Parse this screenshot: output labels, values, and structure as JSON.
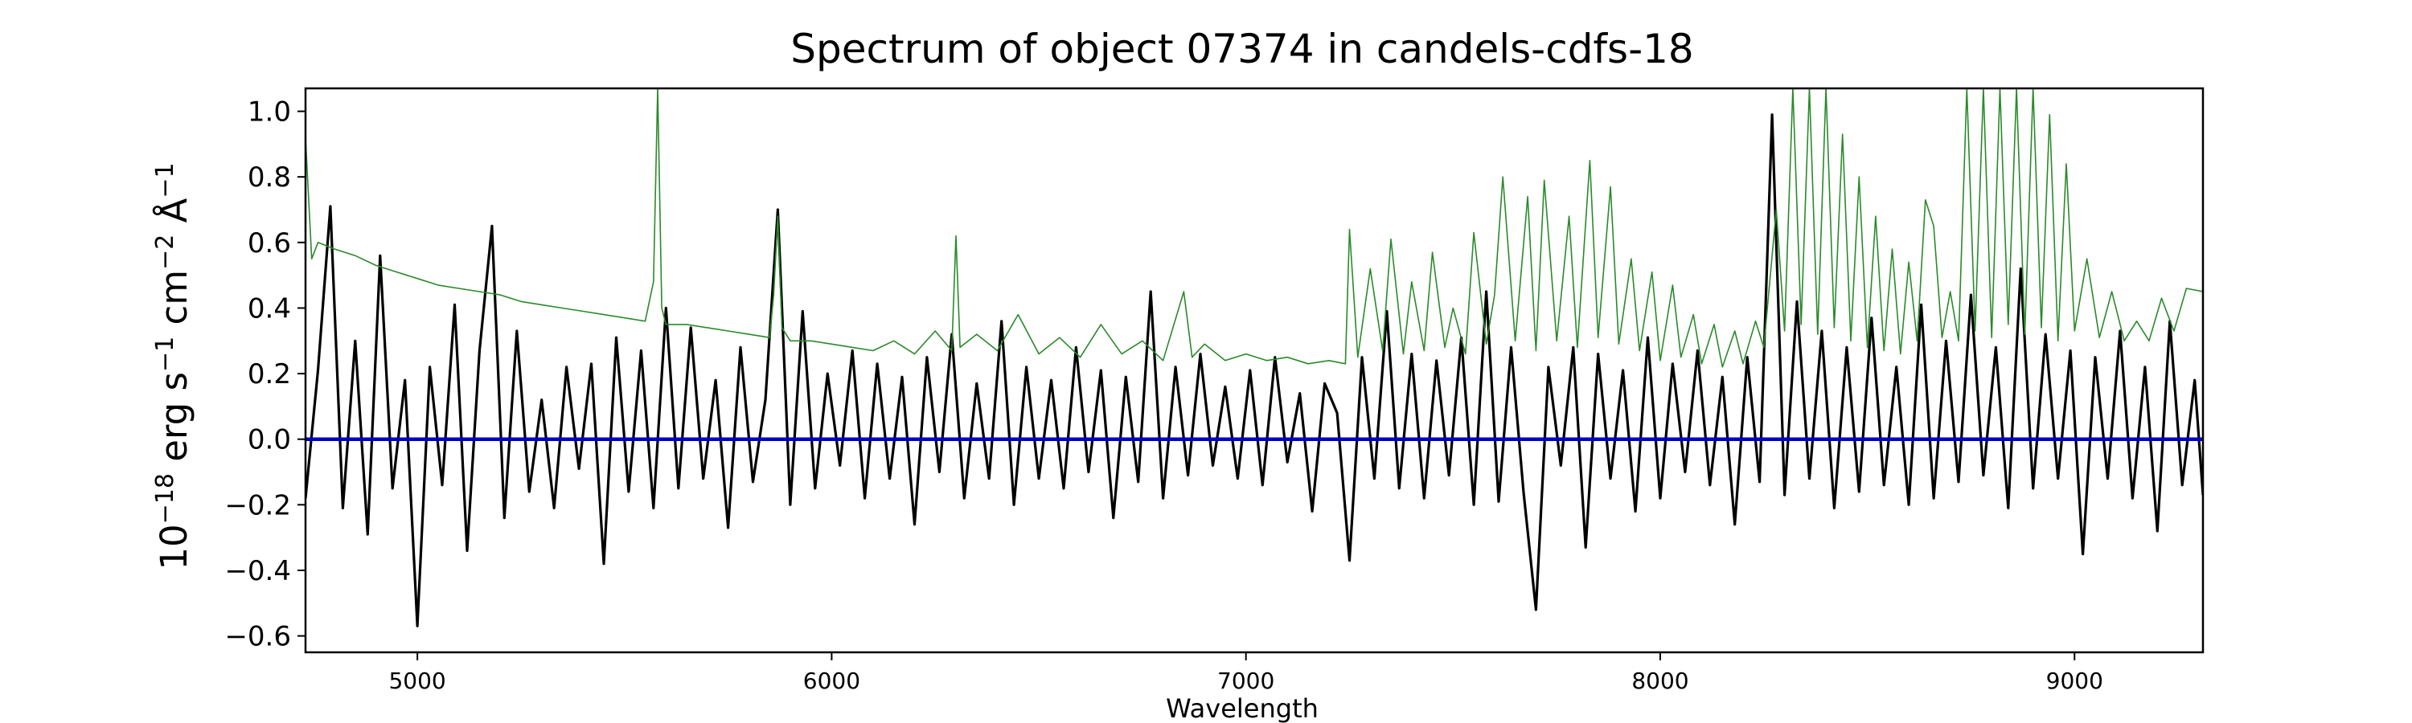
{
  "chart_data": {
    "type": "line",
    "title": "Spectrum of object 07374 in candels-cdfs-18",
    "xlabel": "Wavelength",
    "ylabel": {
      "prefix": "10",
      "prefix_exp": "−18",
      "body": " erg s",
      "s_exp": "−1",
      "cm": " cm",
      "cm_exp": "−2",
      "ang": " Å",
      "ang_exp": "−1"
    },
    "xlim": [
      4730,
      9310
    ],
    "ylim": [
      -0.65,
      1.07
    ],
    "xticks": [
      5000,
      6000,
      7000,
      8000,
      9000
    ],
    "yticks": [
      -0.6,
      -0.4,
      -0.2,
      0.0,
      0.2,
      0.4,
      0.6,
      0.8,
      1.0
    ],
    "ytick_labels": [
      "−0.6",
      "−0.4",
      "−0.2",
      "0.0",
      "0.2",
      "0.4",
      "0.6",
      "0.8",
      "1.0"
    ],
    "grid": false,
    "legend": "none",
    "series": [
      {
        "role": "flux",
        "color": "#000000",
        "x": [
          4730,
          4760,
          4790,
          4820,
          4850,
          4880,
          4910,
          4940,
          4970,
          5000,
          5030,
          5060,
          5090,
          5120,
          5150,
          5180,
          5210,
          5240,
          5270,
          5300,
          5330,
          5360,
          5390,
          5420,
          5450,
          5480,
          5510,
          5540,
          5570,
          5600,
          5630,
          5660,
          5690,
          5720,
          5750,
          5780,
          5810,
          5840,
          5870,
          5900,
          5930,
          5960,
          5990,
          6020,
          6050,
          6080,
          6110,
          6140,
          6170,
          6200,
          6230,
          6260,
          6290,
          6320,
          6350,
          6380,
          6410,
          6440,
          6470,
          6500,
          6530,
          6560,
          6590,
          6620,
          6650,
          6680,
          6710,
          6740,
          6770,
          6800,
          6830,
          6860,
          6890,
          6920,
          6950,
          6980,
          7010,
          7040,
          7070,
          7100,
          7130,
          7160,
          7190,
          7220,
          7250,
          7280,
          7310,
          7340,
          7370,
          7400,
          7430,
          7460,
          7490,
          7520,
          7550,
          7580,
          7610,
          7640,
          7670,
          7700,
          7730,
          7760,
          7790,
          7820,
          7850,
          7880,
          7910,
          7940,
          7970,
          8000,
          8030,
          8060,
          8090,
          8120,
          8150,
          8180,
          8210,
          8240,
          8270,
          8300,
          8330,
          8360,
          8390,
          8420,
          8450,
          8480,
          8510,
          8540,
          8570,
          8600,
          8630,
          8660,
          8690,
          8720,
          8750,
          8780,
          8810,
          8840,
          8870,
          8900,
          8930,
          8960,
          8990,
          9020,
          9050,
          9080,
          9110,
          9140,
          9170,
          9200,
          9230,
          9260,
          9290,
          9310
        ],
        "y": [
          -0.18,
          0.21,
          0.71,
          -0.21,
          0.3,
          -0.29,
          0.56,
          -0.15,
          0.18,
          -0.57,
          0.22,
          -0.14,
          0.41,
          -0.34,
          0.27,
          0.65,
          -0.24,
          0.33,
          -0.16,
          0.12,
          -0.21,
          0.22,
          -0.09,
          0.23,
          -0.38,
          0.31,
          -0.16,
          0.27,
          -0.21,
          0.4,
          -0.15,
          0.34,
          -0.12,
          0.18,
          -0.27,
          0.28,
          -0.13,
          0.12,
          0.7,
          -0.2,
          0.39,
          -0.15,
          0.2,
          -0.08,
          0.27,
          -0.18,
          0.23,
          -0.12,
          0.19,
          -0.26,
          0.25,
          -0.1,
          0.32,
          -0.18,
          0.17,
          -0.12,
          0.36,
          -0.2,
          0.22,
          -0.12,
          0.18,
          -0.15,
          0.28,
          -0.1,
          0.21,
          -0.24,
          0.19,
          -0.13,
          0.45,
          -0.18,
          0.22,
          -0.11,
          0.26,
          -0.08,
          0.16,
          -0.12,
          0.21,
          -0.14,
          0.25,
          -0.07,
          0.14,
          -0.22,
          0.17,
          0.08,
          -0.37,
          0.25,
          -0.12,
          0.39,
          -0.15,
          0.26,
          -0.18,
          0.24,
          -0.11,
          0.31,
          -0.2,
          0.45,
          -0.19,
          0.28,
          -0.16,
          -0.52,
          0.22,
          -0.08,
          0.28,
          -0.33,
          0.26,
          -0.12,
          0.21,
          -0.22,
          0.31,
          -0.18,
          0.23,
          -0.1,
          0.27,
          -0.14,
          0.19,
          -0.26,
          0.25,
          -0.13,
          0.99,
          -0.17,
          0.42,
          -0.12,
          0.33,
          -0.21,
          0.28,
          -0.16,
          0.37,
          -0.14,
          0.22,
          -0.2,
          0.41,
          -0.18,
          0.3,
          -0.13,
          0.44,
          -0.11,
          0.28,
          -0.21,
          0.52,
          -0.15,
          0.32,
          -0.12,
          0.27,
          -0.35,
          0.25,
          -0.12,
          0.33,
          -0.18,
          0.22,
          -0.28,
          0.36,
          -0.14,
          0.18,
          -0.17
        ]
      },
      {
        "role": "error",
        "color": "#2a8a2a",
        "x": [
          4730,
          4745,
          4760,
          4800,
          4850,
          4900,
          4950,
          5000,
          5050,
          5100,
          5150,
          5200,
          5250,
          5300,
          5350,
          5400,
          5450,
          5500,
          5550,
          5570,
          5580,
          5590,
          5600,
          5650,
          5700,
          5750,
          5800,
          5850,
          5860,
          5870,
          5880,
          5900,
          5950,
          6000,
          6050,
          6100,
          6150,
          6200,
          6250,
          6290,
          6300,
          6310,
          6350,
          6400,
          6450,
          6500,
          6550,
          6600,
          6650,
          6700,
          6750,
          6800,
          6850,
          6870,
          6900,
          6950,
          7000,
          7050,
          7100,
          7150,
          7200,
          7240,
          7250,
          7270,
          7300,
          7330,
          7350,
          7380,
          7400,
          7430,
          7450,
          7480,
          7500,
          7530,
          7550,
          7580,
          7600,
          7620,
          7650,
          7680,
          7700,
          7720,
          7750,
          7780,
          7800,
          7830,
          7850,
          7880,
          7900,
          7930,
          7950,
          7980,
          8000,
          8030,
          8050,
          8080,
          8100,
          8130,
          8150,
          8180,
          8200,
          8230,
          8250,
          8280,
          8300,
          8320,
          8340,
          8360,
          8380,
          8400,
          8420,
          8440,
          8460,
          8480,
          8500,
          8520,
          8540,
          8560,
          8580,
          8600,
          8620,
          8640,
          8660,
          8680,
          8700,
          8720,
          8740,
          8760,
          8780,
          8800,
          8820,
          8840,
          8860,
          8880,
          8900,
          8920,
          8940,
          8960,
          8980,
          9000,
          9030,
          9060,
          9090,
          9120,
          9150,
          9180,
          9210,
          9240,
          9270,
          9310
        ],
        "y": [
          0.92,
          0.55,
          0.6,
          0.58,
          0.56,
          0.53,
          0.51,
          0.49,
          0.47,
          0.46,
          0.45,
          0.44,
          0.42,
          0.41,
          0.4,
          0.39,
          0.38,
          0.37,
          0.36,
          0.48,
          1.07,
          0.4,
          0.35,
          0.35,
          0.34,
          0.33,
          0.32,
          0.31,
          0.44,
          0.68,
          0.34,
          0.3,
          0.3,
          0.29,
          0.28,
          0.27,
          0.3,
          0.26,
          0.33,
          0.27,
          0.62,
          0.28,
          0.32,
          0.27,
          0.38,
          0.26,
          0.31,
          0.25,
          0.35,
          0.26,
          0.3,
          0.24,
          0.45,
          0.25,
          0.29,
          0.24,
          0.26,
          0.24,
          0.25,
          0.23,
          0.24,
          0.23,
          0.64,
          0.25,
          0.52,
          0.27,
          0.61,
          0.26,
          0.48,
          0.27,
          0.57,
          0.28,
          0.4,
          0.26,
          0.63,
          0.29,
          0.44,
          0.8,
          0.3,
          0.74,
          0.27,
          0.79,
          0.3,
          0.68,
          0.28,
          0.85,
          0.31,
          0.77,
          0.29,
          0.55,
          0.27,
          0.51,
          0.24,
          0.47,
          0.25,
          0.38,
          0.23,
          0.35,
          0.22,
          0.33,
          0.23,
          0.36,
          0.28,
          0.7,
          0.33,
          1.07,
          0.35,
          1.07,
          0.32,
          1.07,
          0.34,
          0.93,
          0.3,
          0.8,
          0.28,
          0.68,
          0.27,
          0.58,
          0.26,
          0.54,
          0.3,
          0.73,
          0.65,
          0.31,
          0.45,
          0.3,
          1.07,
          0.33,
          1.07,
          0.31,
          1.07,
          0.35,
          1.07,
          0.32,
          1.07,
          0.34,
          0.99,
          0.3,
          0.84,
          0.33,
          0.55,
          0.31,
          0.45,
          0.3,
          0.36,
          0.3,
          0.43,
          0.33,
          0.46,
          0.45
        ]
      },
      {
        "role": "zero-level",
        "color": "#0000cc",
        "x": [
          4730,
          9310
        ],
        "y": [
          0.0,
          0.0
        ]
      }
    ]
  }
}
